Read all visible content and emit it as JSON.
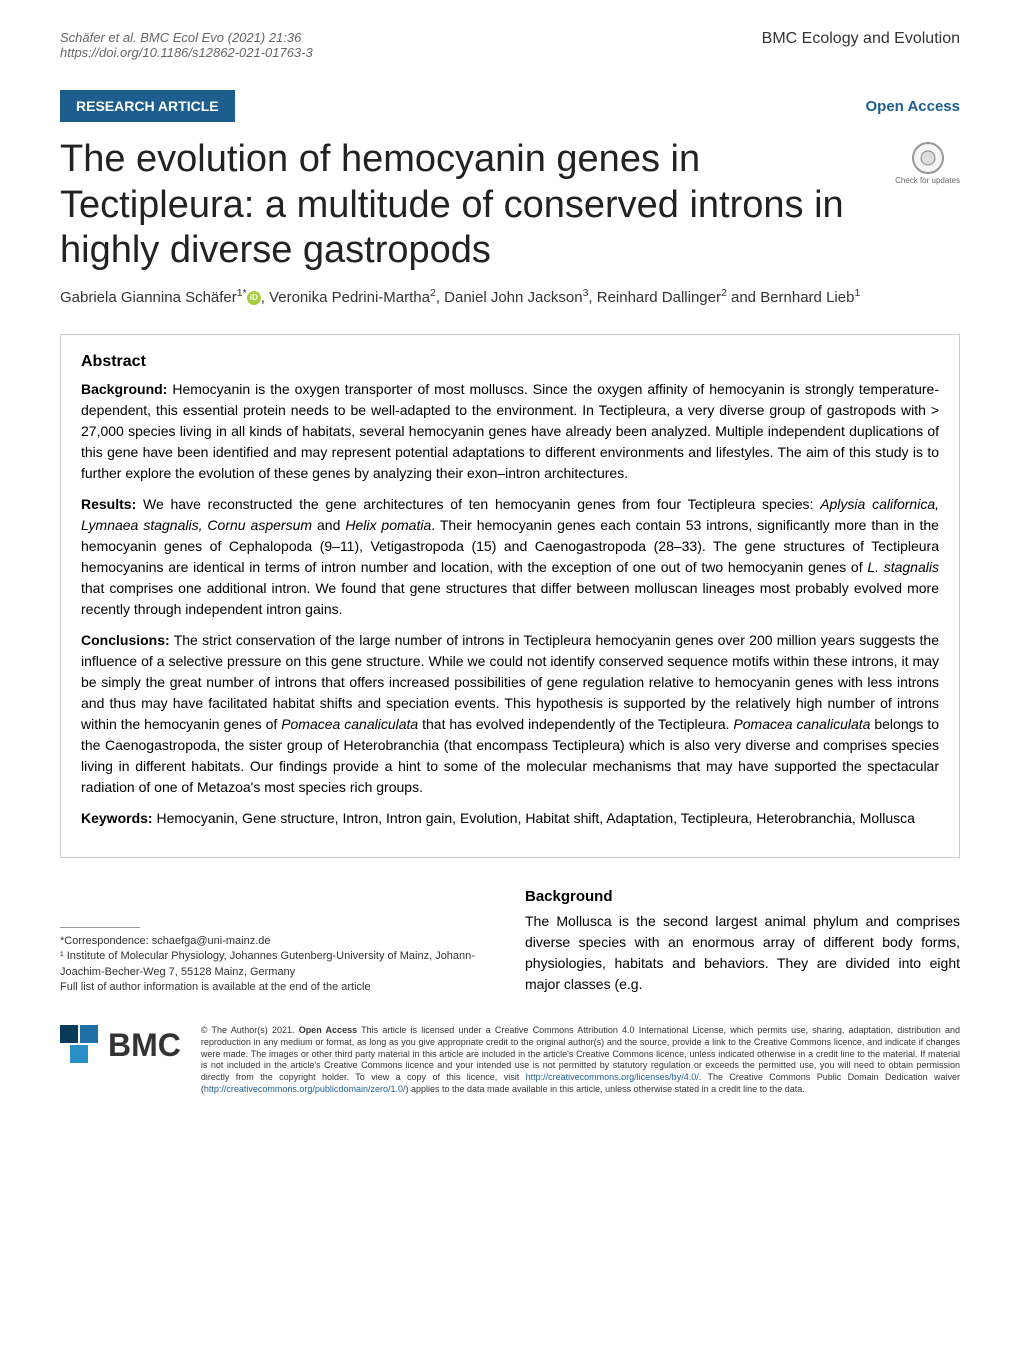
{
  "header": {
    "citation": "Schäfer et al. BMC Ecol Evo    (2021) 21:36",
    "doi": "https://doi.org/10.1186/s12862-021-01763-3",
    "journal": "BMC Ecology and Evolution"
  },
  "badges": {
    "article_type": "RESEARCH ARTICLE",
    "open_access": "Open Access",
    "check_updates": "Check for updates"
  },
  "title": "The evolution of hemocyanin genes in Tectipleura: a multitude of conserved introns in highly diverse gastropods",
  "authors_html": "Gabriela Giannina Schäfer<sup>1*</sup><span class='orcid-icon' data-name='orcid-icon' data-interactable='false'></span>, Veronika Pedrini-Martha<sup>2</sup>, Daniel John Jackson<sup>3</sup>, Reinhard Dallinger<sup>2</sup> and Bernhard Lieb<sup>1</sup>",
  "abstract": {
    "heading": "Abstract",
    "background_label": "Background:",
    "background_text": "  Hemocyanin is the oxygen transporter of most molluscs. Since the oxygen affinity of hemocyanin is strongly temperature-dependent, this essential protein needs to be well-adapted to the environment. In Tectipleura, a very diverse group of gastropods with > 27,000 species living in all kinds of habitats, several hemocyanin genes have already been analyzed. Multiple independent duplications of this gene have been identified and may represent potential adaptations to different environments and lifestyles. The aim of this study is to further explore the evolution of these genes by analyzing their exon–intron architectures.",
    "results_label": "Results:",
    "results_text": "  We have reconstructed the gene architectures of ten hemocyanin genes from four Tectipleura species: <span class='italic'>Aplysia californica, Lymnaea stagnalis, Cornu aspersum</span> and <span class='italic'>Helix pomatia</span>. Their hemocyanin genes each contain 53 introns, significantly more than in the hemocyanin genes of Cephalopoda (9–11), Vetigastropoda (15) and Caenogastropoda (28–33). The gene structures of Tectipleura hemocyanins are identical in terms of intron number and location, with the exception of one out of two hemocyanin genes of <span class='italic'>L. stagnalis</span> that comprises one additional intron. We found that gene structures that differ between molluscan lineages most probably evolved more recently through independent intron gains.",
    "conclusions_label": "Conclusions:",
    "conclusions_text": "  The strict conservation of the large number of introns in Tectipleura hemocyanin genes over 200 million years suggests the influence of a selective pressure on this gene structure. While we could not identify conserved sequence motifs within these introns, it may be simply the great number of introns that offers increased possibilities of gene regulation relative to hemocyanin genes with less introns and thus may have facilitated habitat shifts and speciation events. This hypothesis is supported by the relatively high number of introns within the hemocyanin genes of <span class='italic'>Pomacea canaliculata</span> that has evolved independently of the Tectipleura. <span class='italic'>Pomacea canaliculata</span> belongs to the Caenogastropoda, the sister group of Heterobranchia (that encompass Tectipleura) which is also very diverse and comprises species living in different habitats. Our findings provide a hint to some of the molecular mechanisms that may have supported the spectacular radiation of one of Metazoa's most species rich groups.",
    "keywords_label": "Keywords:",
    "keywords_text": "  Hemocyanin, Gene structure, Intron, Intron gain, Evolution, Habitat shift, Adaptation, Tectipleura, Heterobranchia, Mollusca"
  },
  "background_section": {
    "heading": "Background",
    "text": "The Mollusca is the second largest animal phylum and comprises diverse species with an enormous array of different body forms, physiologies, habitats and behaviors. They are divided into eight major classes (e.g."
  },
  "correspondence": {
    "email_label": "*Correspondence:  ",
    "email": "schaefga@uni-mainz.de",
    "affiliation": "¹ Institute of Molecular Physiology, Johannes Gutenberg-University of Mainz, Johann-Joachim-Becher-Weg 7, 55128 Mainz, Germany",
    "full_list": "Full list of author information is available at the end of the article"
  },
  "footer": {
    "bmc": "BMC",
    "license": "© The Author(s) 2021. <b>Open Access</b> This article is licensed under a Creative Commons Attribution 4.0 International License, which permits use, sharing, adaptation, distribution and reproduction in any medium or format, as long as you give appropriate credit to the original author(s) and the source, provide a link to the Creative Commons licence, and indicate if changes were made. The images or other third party material in this article are included in the article's Creative Commons licence, unless indicated otherwise in a credit line to the material. If material is not included in the article's Creative Commons licence and your intended use is not permitted by statutory regulation or exceeds the permitted use, you will need to obtain permission directly from the copyright holder. To view a copy of this licence, visit <span class='link-blue'>http://creativecommons.org/licenses/by/4.0/</span>. The Creative Commons Public Domain Dedication waiver (<span class='link-blue'>http://creativecommons.org/publicdomain/zero/1.0/</span>) applies to the data made available in this article, unless otherwise stated in a credit line to the data."
  }
}
